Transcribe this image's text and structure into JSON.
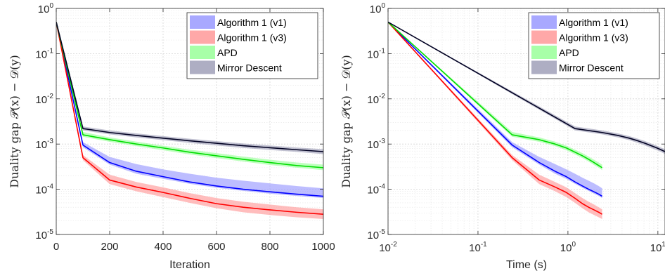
{
  "chart_data": [
    {
      "type": "line",
      "xlabel": "Iteration",
      "ylabel": "Duality gap 𝒫(x) − 𝒟(y)",
      "xscale": "linear",
      "yscale": "log",
      "xlim": [
        0,
        1000
      ],
      "ylim": [
        1e-05,
        1
      ],
      "x_ticks": [
        {
          "value": 0,
          "label": "0"
        },
        {
          "value": 200,
          "label": "200"
        },
        {
          "value": 400,
          "label": "400"
        },
        {
          "value": 600,
          "label": "600"
        },
        {
          "value": 800,
          "label": "800"
        },
        {
          "value": 1000,
          "label": "1000"
        }
      ],
      "y_ticks": [
        {
          "value": 1,
          "base": "10",
          "exp": "0"
        },
        {
          "value": 0.1,
          "base": "10",
          "exp": "-1"
        },
        {
          "value": 0.01,
          "base": "10",
          "exp": "-2"
        },
        {
          "value": 0.001,
          "base": "10",
          "exp": "-3"
        },
        {
          "value": 0.0001,
          "base": "10",
          "exp": "-4"
        },
        {
          "value": 1e-05,
          "base": "10",
          "exp": "-5"
        }
      ],
      "grid": true,
      "legend_position": "top-right",
      "series": [
        {
          "name": "Algorithm 1 (v1)",
          "color": "#0000ff",
          "band_color": "#9999ff",
          "x": [
            0,
            100,
            200,
            300,
            400,
            500,
            600,
            700,
            800,
            900,
            1000
          ],
          "y": [
            0.5,
            0.00095,
            0.00039,
            0.00025,
            0.00019,
            0.000145,
            0.000118,
            0.0001,
            8.8e-05,
            7.8e-05,
            7e-05
          ],
          "y_low": [
            0.5,
            0.00085,
            0.00035,
            0.00022,
            0.00017,
            0.000132,
            0.000108,
            9.2e-05,
            8e-05,
            7.1e-05,
            6.4e-05
          ],
          "y_high": [
            0.5,
            0.0011,
            0.00052,
            0.00036,
            0.000275,
            0.00022,
            0.00018,
            0.000155,
            0.000135,
            0.000118,
            0.000105
          ]
        },
        {
          "name": "Algorithm 1 (v3)",
          "color": "#ff0000",
          "band_color": "#ff9999",
          "x": [
            0,
            100,
            200,
            300,
            400,
            500,
            600,
            700,
            800,
            900,
            1000
          ],
          "y": [
            0.5,
            0.0005,
            0.00016,
            0.000112,
            8.5e-05,
            6.3e-05,
            4.8e-05,
            4e-05,
            3.5e-05,
            3.1e-05,
            2.8e-05
          ],
          "y_low": [
            0.5,
            0.00044,
            0.00013,
            9e-05,
            6.7e-05,
            5e-05,
            3.8e-05,
            3.1e-05,
            2.7e-05,
            2.4e-05,
            2.2e-05
          ],
          "y_high": [
            0.5,
            0.00057,
            0.00021,
            0.000145,
            0.00011,
            8.2e-05,
            6.4e-05,
            5.3e-05,
            4.6e-05,
            4e-05,
            3.6e-05
          ]
        },
        {
          "name": "APD",
          "color": "#00dd00",
          "band_color": "#99ff99",
          "x": [
            0,
            100,
            200,
            300,
            400,
            500,
            600,
            700,
            800,
            900,
            1000
          ],
          "y": [
            0.5,
            0.0016,
            0.00125,
            0.001,
            0.00082,
            0.00066,
            0.00055,
            0.00046,
            0.00039,
            0.000335,
            0.0003
          ],
          "y_low": [
            0.5,
            0.00145,
            0.00112,
            0.0009,
            0.00073,
            0.00059,
            0.00049,
            0.00041,
            0.000345,
            0.0003,
            0.000265
          ],
          "y_high": [
            0.5,
            0.00185,
            0.0014,
            0.00113,
            0.00092,
            0.00075,
            0.00063,
            0.00053,
            0.00045,
            0.00039,
            0.00035
          ]
        },
        {
          "name": "Mirror Descent",
          "color": "#000022",
          "band_color": "#a0a0b8",
          "x": [
            0,
            100,
            200,
            300,
            400,
            500,
            600,
            700,
            800,
            900,
            1000
          ],
          "y": [
            0.5,
            0.0022,
            0.0018,
            0.00155,
            0.00135,
            0.00118,
            0.00104,
            0.00092,
            0.00083,
            0.00075,
            0.00068
          ],
          "y_low": [
            0.5,
            0.002,
            0.00164,
            0.0014,
            0.00122,
            0.00106,
            0.00093,
            0.00082,
            0.00074,
            0.00067,
            0.0006
          ],
          "y_high": [
            0.5,
            0.00245,
            0.002,
            0.00172,
            0.0015,
            0.00131,
            0.00116,
            0.00103,
            0.00093,
            0.00084,
            0.00077
          ]
        }
      ]
    },
    {
      "type": "line",
      "xlabel": "Time (s)",
      "ylabel": "Duality gap 𝒫(x) − 𝒟(y)",
      "xscale": "log",
      "yscale": "log",
      "xlim": [
        0.01,
        12
      ],
      "ylim": [
        1e-05,
        1
      ],
      "x_ticks": [
        {
          "value": 0.01,
          "base": "10",
          "exp": "-2"
        },
        {
          "value": 0.1,
          "base": "10",
          "exp": "-1"
        },
        {
          "value": 1,
          "base": "10",
          "exp": "0"
        },
        {
          "value": 10,
          "base": "10",
          "exp": "1"
        }
      ],
      "y_ticks": [
        {
          "value": 1,
          "base": "10",
          "exp": "0"
        },
        {
          "value": 0.1,
          "base": "10",
          "exp": "-1"
        },
        {
          "value": 0.01,
          "base": "10",
          "exp": "-2"
        },
        {
          "value": 0.001,
          "base": "10",
          "exp": "-3"
        },
        {
          "value": 0.0001,
          "base": "10",
          "exp": "-4"
        },
        {
          "value": 1e-05,
          "base": "10",
          "exp": "-5"
        }
      ],
      "grid": true,
      "legend_position": "top-right",
      "series": [
        {
          "name": "Algorithm 1 (v1)",
          "color": "#0000ff",
          "band_color": "#9999ff",
          "x": [
            0.01,
            0.24,
            0.48,
            0.72,
            0.96,
            1.2,
            1.45,
            1.7,
            1.95,
            2.2,
            2.4
          ],
          "y": [
            0.5,
            0.00095,
            0.00039,
            0.00025,
            0.00019,
            0.000145,
            0.000118,
            0.0001,
            8.8e-05,
            7.8e-05,
            7e-05
          ],
          "y_low": [
            0.5,
            0.00085,
            0.00035,
            0.00022,
            0.00017,
            0.000132,
            0.000108,
            9.2e-05,
            8e-05,
            7.1e-05,
            6.4e-05
          ],
          "y_high": [
            0.5,
            0.0011,
            0.00052,
            0.00036,
            0.000275,
            0.00022,
            0.00018,
            0.000155,
            0.000135,
            0.000118,
            0.000105
          ]
        },
        {
          "name": "Algorithm 1 (v3)",
          "color": "#ff0000",
          "band_color": "#ff9999",
          "x": [
            0.01,
            0.24,
            0.48,
            0.72,
            0.96,
            1.2,
            1.45,
            1.7,
            1.95,
            2.2,
            2.4
          ],
          "y": [
            0.5,
            0.0005,
            0.00016,
            0.000112,
            8.5e-05,
            6.3e-05,
            4.8e-05,
            4e-05,
            3.5e-05,
            3.1e-05,
            2.8e-05
          ],
          "y_low": [
            0.5,
            0.00044,
            0.00013,
            9e-05,
            6.7e-05,
            5e-05,
            3.8e-05,
            3.1e-05,
            2.7e-05,
            2.4e-05,
            2.2e-05
          ],
          "y_high": [
            0.5,
            0.00057,
            0.00021,
            0.000145,
            0.00011,
            8.2e-05,
            6.4e-05,
            5.3e-05,
            4.6e-05,
            4e-05,
            3.6e-05
          ]
        },
        {
          "name": "APD",
          "color": "#00dd00",
          "band_color": "#99ff99",
          "x": [
            0.01,
            0.24,
            0.48,
            0.72,
            0.96,
            1.2,
            1.45,
            1.7,
            1.95,
            2.2,
            2.4
          ],
          "y": [
            0.5,
            0.0016,
            0.00125,
            0.001,
            0.00082,
            0.00066,
            0.00055,
            0.00046,
            0.00039,
            0.000335,
            0.0003
          ],
          "y_low": [
            0.5,
            0.00145,
            0.00112,
            0.0009,
            0.00073,
            0.00059,
            0.00049,
            0.00041,
            0.000345,
            0.0003,
            0.000265
          ],
          "y_high": [
            0.5,
            0.00185,
            0.0014,
            0.00113,
            0.00092,
            0.00075,
            0.00063,
            0.00053,
            0.00045,
            0.00039,
            0.00035
          ]
        },
        {
          "name": "Mirror Descent",
          "color": "#000022",
          "band_color": "#a0a0b8",
          "x": [
            0.01,
            1.2,
            2.4,
            3.6,
            4.8,
            6.0,
            7.2,
            8.4,
            9.6,
            10.8,
            12
          ],
          "y": [
            0.5,
            0.0022,
            0.0018,
            0.00155,
            0.00135,
            0.00118,
            0.00104,
            0.00092,
            0.00083,
            0.00075,
            0.00068
          ],
          "y_low": [
            0.5,
            0.002,
            0.00164,
            0.0014,
            0.00122,
            0.00106,
            0.00093,
            0.00082,
            0.00074,
            0.00067,
            0.0006
          ],
          "y_high": [
            0.5,
            0.00245,
            0.002,
            0.00172,
            0.0015,
            0.00131,
            0.00116,
            0.00103,
            0.00093,
            0.00084,
            0.00077
          ]
        }
      ]
    }
  ]
}
